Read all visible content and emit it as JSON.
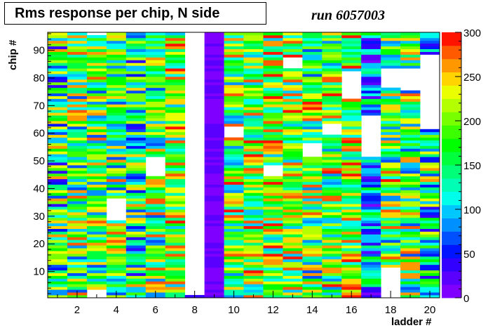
{
  "chart_data": {
    "type": "heatmap",
    "title": "Rms response per chip, N side",
    "annotation": "run 6057003",
    "xlabel": "ladder #",
    "ylabel": "chip #",
    "x_range": [
      0.5,
      20.5
    ],
    "y_range": [
      0.5,
      96.5
    ],
    "n_ladders": 20,
    "n_chips": 96,
    "x_ticks": [
      2,
      4,
      6,
      8,
      10,
      12,
      14,
      16,
      18,
      20
    ],
    "y_ticks": [
      10,
      20,
      30,
      40,
      50,
      60,
      70,
      80,
      90
    ],
    "z_range": [
      0,
      300
    ],
    "z_ticks": [
      0,
      50,
      100,
      150,
      200,
      250,
      300
    ],
    "palette": [
      "#7f00ff",
      "#5a00ff",
      "#3200ff",
      "#0014ff",
      "#0050ff",
      "#0090ff",
      "#00c8ff",
      "#00ffea",
      "#00ffb4",
      "#00ff78",
      "#00ff3c",
      "#00ff00",
      "#3cff00",
      "#78ff00",
      "#b4ff00",
      "#eaff00",
      "#ffd400",
      "#ff9800",
      "#ff5a00",
      "#ff1400"
    ],
    "ladder_profiles": [
      {
        "ladder": 1,
        "mean": 150,
        "spread": 120,
        "empty_chips": []
      },
      {
        "ladder": 2,
        "mean": 170,
        "spread": 110,
        "empty_chips": []
      },
      {
        "ladder": 3,
        "mean": 180,
        "spread": 110,
        "empty_chips": [
          1,
          2,
          3,
          96
        ]
      },
      {
        "ladder": 4,
        "mean": 170,
        "spread": 110,
        "empty_chips": [
          29,
          30,
          31,
          32,
          33,
          34,
          35,
          36
        ]
      },
      {
        "ladder": 5,
        "mean": 150,
        "spread": 120,
        "empty_chips": []
      },
      {
        "ladder": 6,
        "mean": 170,
        "spread": 110,
        "empty_chips": [
          45,
          46,
          47,
          48,
          49,
          50,
          51
        ]
      },
      {
        "ladder": 7,
        "mean": 190,
        "spread": 100,
        "empty_chips": []
      },
      {
        "ladder": 8,
        "mean": 15,
        "spread": 25,
        "empty_chips": [
          2,
          3,
          4,
          5,
          6,
          7,
          8,
          9,
          10,
          11,
          12,
          13,
          14,
          15,
          16,
          17,
          18,
          19,
          20,
          21,
          22,
          23,
          24,
          25,
          26,
          27,
          28,
          29,
          30,
          31,
          32,
          33,
          34,
          35,
          36,
          37,
          38,
          39,
          40,
          41,
          42,
          43,
          44,
          45,
          46,
          47,
          48,
          49,
          50,
          51,
          52,
          53,
          54,
          55,
          56,
          57,
          58,
          59,
          60,
          61,
          62,
          63,
          64,
          65,
          66,
          67,
          68,
          69,
          70,
          71,
          72,
          73,
          74,
          75,
          76,
          77,
          78,
          79,
          80,
          81,
          82,
          83,
          84,
          85,
          86,
          87,
          88,
          89,
          90,
          91,
          92,
          93,
          94,
          95,
          96
        ]
      },
      {
        "ladder": 9,
        "mean": 10,
        "spread": 15,
        "empty_chips": []
      },
      {
        "ladder": 10,
        "mean": 180,
        "spread": 110,
        "empty_chips": [
          59,
          60,
          61,
          62
        ]
      },
      {
        "ladder": 11,
        "mean": 190,
        "spread": 100,
        "empty_chips": []
      },
      {
        "ladder": 12,
        "mean": 200,
        "spread": 100,
        "empty_chips": [
          45,
          46,
          47,
          48
        ]
      },
      {
        "ladder": 13,
        "mean": 190,
        "spread": 100,
        "empty_chips": [
          84,
          85,
          86,
          87
        ]
      },
      {
        "ladder": 14,
        "mean": 180,
        "spread": 110,
        "empty_chips": [
          52,
          53,
          54,
          55,
          56
        ]
      },
      {
        "ladder": 15,
        "mean": 180,
        "spread": 110,
        "empty_chips": [
          60,
          61,
          62,
          63
        ]
      },
      {
        "ladder": 16,
        "mean": 200,
        "spread": 100,
        "empty_chips": [
          73,
          74,
          75,
          76,
          77,
          78,
          79,
          80,
          81,
          82
        ]
      },
      {
        "ladder": 17,
        "mean": 90,
        "spread": 90,
        "empty_chips": [
          52,
          53,
          54,
          55,
          56,
          57,
          58,
          59,
          60,
          61,
          62,
          63,
          64,
          65,
          66
        ]
      },
      {
        "ladder": 18,
        "mean": 180,
        "spread": 110,
        "empty_chips": [
          1,
          2,
          3,
          4,
          5,
          6,
          7,
          8,
          9,
          10,
          11,
          77,
          78,
          79,
          80,
          81,
          82,
          83
        ]
      },
      {
        "ladder": 19,
        "mean": 170,
        "spread": 110,
        "empty_chips": [
          76,
          77,
          78,
          79,
          80,
          81,
          82,
          83
        ]
      },
      {
        "ladder": 20,
        "mean": 150,
        "spread": 120,
        "empty_chips": [
          62,
          63,
          64,
          65,
          66,
          67,
          68,
          69,
          70,
          71,
          72,
          73,
          74,
          75,
          76,
          77,
          78,
          79,
          80,
          81,
          82,
          83,
          84,
          85,
          86,
          87,
          88
        ]
      }
    ]
  }
}
